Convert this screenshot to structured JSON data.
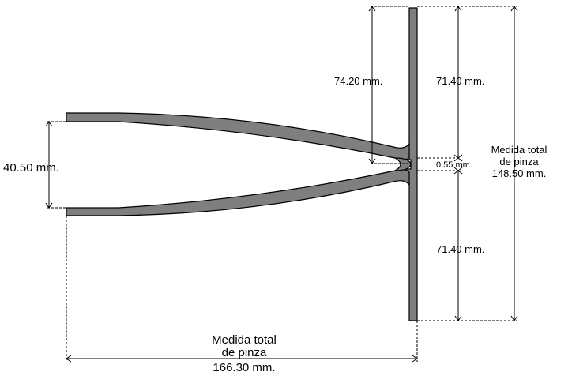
{
  "labels": {
    "left_spread": "40.50 mm.",
    "upper_jaw_height": "74.20 mm.",
    "upper_stem": "71.40 mm.",
    "gap": "0.55 mm.",
    "lower_stem": "71.40 mm.",
    "total_height_line1": "Medida total",
    "total_height_line2": "de pinza",
    "total_height_line3": "148.50 mm.",
    "total_length_line1": "Medida total",
    "total_length_line2": "de pinza",
    "total_length_line3": "166.30 mm."
  },
  "colors": {
    "part_fill": "#7f7f7f",
    "line": "#000000",
    "background": "#ffffff"
  }
}
